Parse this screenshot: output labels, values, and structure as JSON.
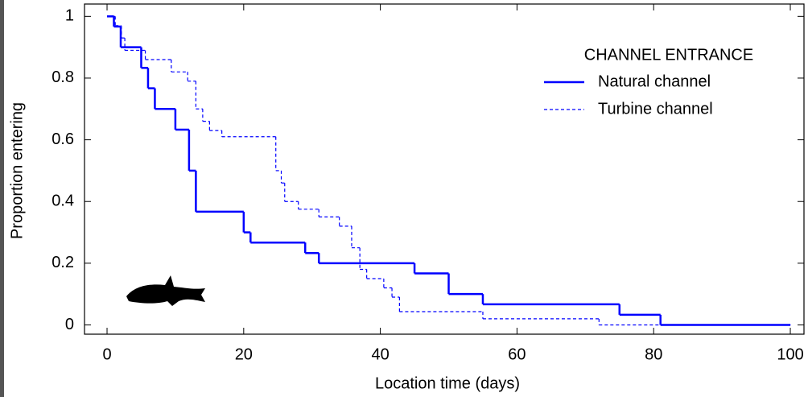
{
  "chart_data": {
    "type": "step",
    "x_label": "Location time (days)",
    "y_label": "Proportion entering",
    "legend_title": "CHANNEL ENTRANCE",
    "legend_position": "upper right",
    "xlim": [
      -3.3,
      102
    ],
    "ylim": [
      -0.03,
      1.04
    ],
    "xticks": [
      0,
      20,
      40,
      60,
      80,
      100
    ],
    "yticks": [
      0,
      0.2,
      0.4,
      0.6,
      0.8,
      1
    ],
    "series": [
      {
        "name": "Natural channel",
        "color": "#0000ff",
        "line_style": "solid",
        "x": [
          0,
          1,
          2,
          5,
          6,
          7,
          10,
          12,
          13,
          20,
          21,
          29,
          31,
          45,
          50,
          55,
          75,
          81,
          100
        ],
        "values": [
          1,
          0.967,
          0.9,
          0.833,
          0.767,
          0.7,
          0.633,
          0.5,
          0.367,
          0.3,
          0.267,
          0.233,
          0.2,
          0.167,
          0.1,
          0.067,
          0.033,
          0,
          0
        ]
      },
      {
        "name": "Turbine channel",
        "color": "#0000ff",
        "line_style": "dashed",
        "x": [
          0,
          1.2,
          2.1,
          2.6,
          5.6,
          9.4,
          11.8,
          13,
          14,
          15,
          16.8,
          24.7,
          25.5,
          26,
          28,
          31,
          34,
          35.8,
          37,
          38,
          40.5,
          41.7,
          42.8,
          55,
          72,
          100
        ],
        "values": [
          1,
          0.97,
          0.93,
          0.89,
          0.86,
          0.82,
          0.79,
          0.7,
          0.66,
          0.63,
          0.61,
          0.5,
          0.46,
          0.4,
          0.375,
          0.35,
          0.32,
          0.25,
          0.18,
          0.15,
          0.12,
          0.09,
          0.043,
          0.02,
          0,
          0
        ]
      }
    ]
  }
}
